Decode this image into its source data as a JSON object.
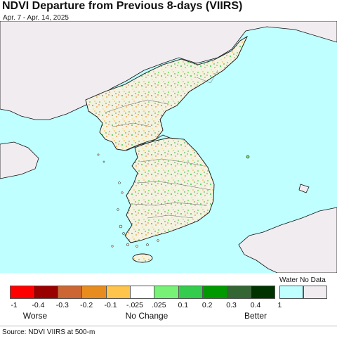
{
  "title": "NDVI Departure from Previous 8-days (VIIRS)",
  "subtitle": "Apr. 7 - Apr. 14, 2025",
  "colors": {
    "water": "#bfffff",
    "land_nodata": "#f0ecef",
    "border": "#333333",
    "coast": "#111111"
  },
  "legend": {
    "water_nodata_label": "Water No Data",
    "swatches": [
      "#ff0000",
      "#990000",
      "#cc6633",
      "#e88c1e",
      "#ffc44c",
      "#ffffff",
      "#77f277",
      "#33cc4c",
      "#009900",
      "#336633",
      "#003300"
    ],
    "water_color": "#bfffff",
    "nodata_color": "#f0ecef",
    "ticks": [
      "-1",
      "-0.4",
      "-0.3",
      "-0.2",
      "-0.1",
      "-.025",
      ".025",
      "0.1",
      "0.2",
      "0.3",
      "0.4",
      "1"
    ],
    "categories": {
      "worse": "Worse",
      "no_change": "No Change",
      "better": "Better"
    }
  },
  "source": "Source: NDVI VIIRS at 500-m"
}
